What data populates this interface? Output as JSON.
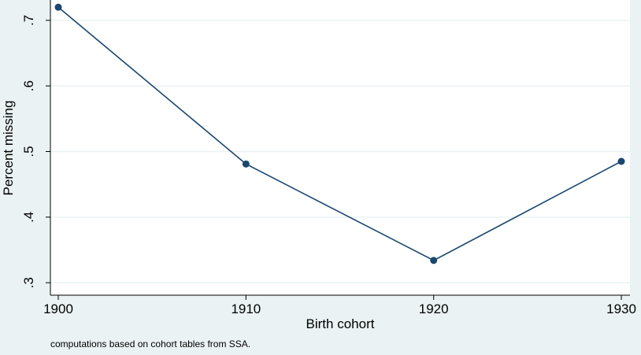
{
  "chart_data": {
    "type": "line",
    "x": [
      1900,
      1910,
      1920,
      1930
    ],
    "series": [
      {
        "name": "Percent missing",
        "color": "#1a476f",
        "values": [
          0.72,
          0.481,
          0.334,
          0.485
        ]
      }
    ],
    "xlabel": "Birth cohort",
    "ylabel": "Percent missing",
    "note": "computations based on cohort tables from SSA.",
    "xlim": [
      1899.58,
      1930.46
    ],
    "ylim": [
      0.281,
      0.731
    ],
    "xticks": [
      1900,
      1910,
      1920,
      1930
    ],
    "yticks": [
      {
        "value": 0.3,
        "label": ".3"
      },
      {
        "value": 0.4,
        "label": ".4"
      },
      {
        "value": 0.5,
        "label": ".5"
      },
      {
        "value": 0.6,
        "label": ".6"
      },
      {
        "value": 0.7,
        "label": ".7"
      }
    ],
    "grid": true,
    "marker": true
  }
}
